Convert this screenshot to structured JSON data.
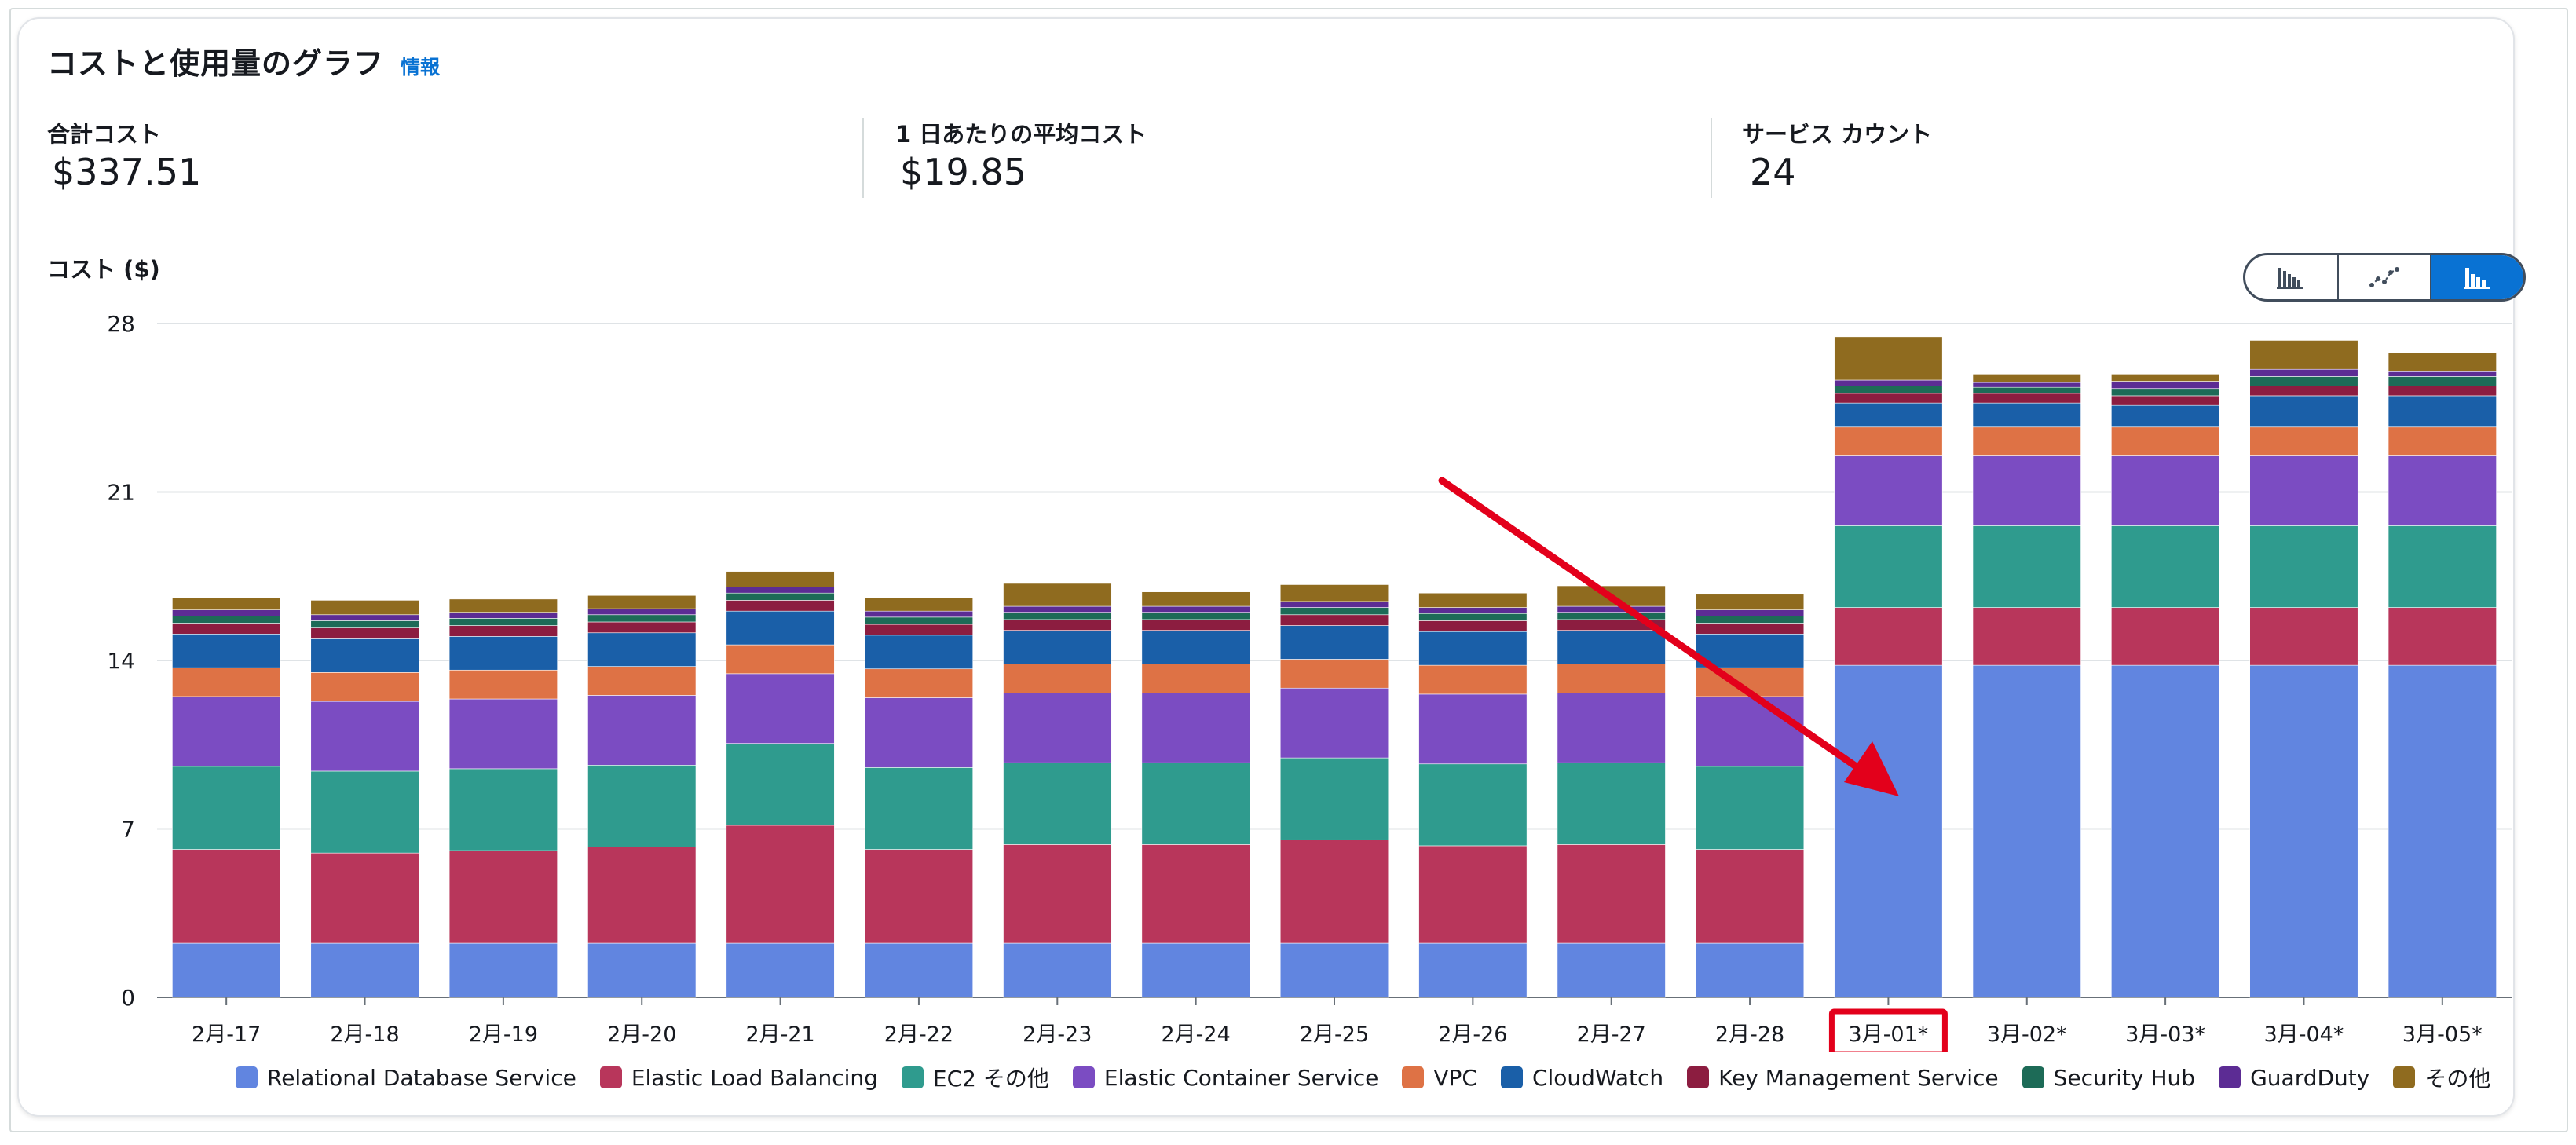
{
  "header": {
    "title": "コストと使用量のグラフ",
    "info_link": "情報"
  },
  "metrics": [
    {
      "label": "合計コスト",
      "value": "$337.51"
    },
    {
      "label": "1 日あたりの平均コスト",
      "value": "$19.85"
    },
    {
      "label": "サービス カウント",
      "value": "24"
    }
  ],
  "view_toggle": {
    "options": [
      "bar-chart-icon",
      "line-chart-icon",
      "stacked-bar-chart-icon"
    ],
    "selected": "stacked-bar-chart-icon"
  },
  "colors": {
    "accent": "#0972d3",
    "highlight": "#e3001b",
    "arrow": "#e3001b"
  },
  "chart_data": {
    "type": "bar",
    "stacked": true,
    "ylabel": "コスト ($)",
    "ylim": [
      0,
      28
    ],
    "yticks": [
      0,
      7,
      14,
      21,
      28
    ],
    "grid": true,
    "legend_position": "bottom",
    "highlighted_category": "3月-01*",
    "categories": [
      "2月-17",
      "2月-18",
      "2月-19",
      "2月-20",
      "2月-21",
      "2月-22",
      "2月-23",
      "2月-24",
      "2月-25",
      "2月-26",
      "2月-27",
      "2月-28",
      "3月-01*",
      "3月-02*",
      "3月-03*",
      "3月-04*",
      "3月-05*"
    ],
    "series": [
      {
        "name": "Relational Database Service",
        "color": "#6185e0",
        "values": [
          2.25,
          2.25,
          2.25,
          2.25,
          2.25,
          2.25,
          2.25,
          2.25,
          2.25,
          2.25,
          2.25,
          2.25,
          13.8,
          13.8,
          13.8,
          13.8,
          13.8
        ]
      },
      {
        "name": "Elastic Load Balancing",
        "color": "#b8365b",
        "values": [
          3.9,
          3.75,
          3.85,
          4.0,
          4.9,
          3.9,
          4.1,
          4.1,
          4.3,
          4.05,
          4.1,
          3.9,
          2.4,
          2.4,
          2.4,
          2.4,
          2.4
        ]
      },
      {
        "name": "EC2 その他",
        "color": "#2f9b8e",
        "values": [
          3.45,
          3.4,
          3.4,
          3.4,
          3.4,
          3.4,
          3.4,
          3.4,
          3.4,
          3.4,
          3.4,
          3.45,
          3.4,
          3.4,
          3.4,
          3.4,
          3.4
        ]
      },
      {
        "name": "Elastic Container Service",
        "color": "#7b4cc2",
        "values": [
          2.9,
          2.9,
          2.9,
          2.9,
          2.9,
          2.9,
          2.9,
          2.9,
          2.9,
          2.9,
          2.9,
          2.9,
          2.9,
          2.9,
          2.9,
          2.9,
          2.9
        ]
      },
      {
        "name": "VPC",
        "color": "#de7245",
        "values": [
          1.2,
          1.2,
          1.2,
          1.2,
          1.2,
          1.2,
          1.2,
          1.2,
          1.2,
          1.2,
          1.2,
          1.2,
          1.2,
          1.2,
          1.2,
          1.2,
          1.2
        ]
      },
      {
        "name": "CloudWatch",
        "color": "#1a5fa8",
        "values": [
          1.4,
          1.4,
          1.4,
          1.4,
          1.4,
          1.4,
          1.4,
          1.4,
          1.4,
          1.4,
          1.4,
          1.4,
          1.0,
          1.0,
          0.9,
          1.3,
          1.3
        ]
      },
      {
        "name": "Key Management Service",
        "color": "#8c1d40",
        "values": [
          0.45,
          0.45,
          0.45,
          0.45,
          0.45,
          0.45,
          0.45,
          0.45,
          0.45,
          0.45,
          0.45,
          0.45,
          0.4,
          0.4,
          0.4,
          0.4,
          0.4
        ]
      },
      {
        "name": "Security Hub",
        "color": "#1d6b57",
        "values": [
          0.3,
          0.3,
          0.3,
          0.3,
          0.3,
          0.3,
          0.3,
          0.3,
          0.3,
          0.3,
          0.3,
          0.3,
          0.3,
          0.25,
          0.3,
          0.4,
          0.4
        ]
      },
      {
        "name": "GuardDuty",
        "color": "#5c2c94",
        "values": [
          0.25,
          0.25,
          0.25,
          0.25,
          0.25,
          0.25,
          0.25,
          0.25,
          0.25,
          0.25,
          0.25,
          0.25,
          0.25,
          0.2,
          0.3,
          0.3,
          0.2
        ]
      },
      {
        "name": "その他",
        "color": "#8f6b1f",
        "values": [
          0.5,
          0.6,
          0.55,
          0.55,
          0.65,
          0.55,
          0.95,
          0.6,
          0.7,
          0.6,
          0.85,
          0.65,
          1.8,
          0.35,
          0.3,
          1.2,
          0.8
        ]
      }
    ]
  }
}
